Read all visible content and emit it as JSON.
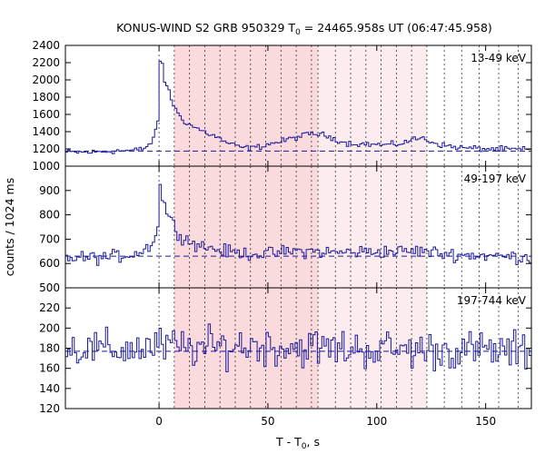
{
  "chart_data": {
    "type": "line",
    "title": {
      "prefix": "KONUS-WIND S2 GRB 950329 T",
      "sub": "0",
      "suffix": " = 24465.958s UT (06:47:45.958)"
    },
    "xlabel": {
      "prefix": "T - T",
      "sub": "0",
      "suffix": ", s"
    },
    "ylabel": "counts / 1024 ms",
    "xlim": [
      -43,
      171
    ],
    "x_ticks": [
      0,
      50,
      100,
      150
    ],
    "shaded_regions": [
      {
        "from": 7,
        "to": 73,
        "color": "#fadadd"
      },
      {
        "from": 73,
        "to": 123,
        "color": "#fcecee"
      }
    ],
    "vertical_lines": [
      0,
      7,
      14,
      21,
      28,
      35,
      42,
      49,
      56,
      63,
      70,
      73,
      81,
      88,
      95,
      102,
      109,
      116,
      123,
      131,
      139,
      147,
      156,
      165
    ],
    "panels": [
      {
        "label": "13-49 keV",
        "ylim": [
          1000,
          2400
        ],
        "y_ticks": [
          1000,
          1200,
          1400,
          1600,
          1800,
          2000,
          2200,
          2400
        ],
        "background": 1175,
        "anchors": [
          [
            -43,
            1160
          ],
          [
            -30,
            1162
          ],
          [
            -20,
            1178
          ],
          [
            -12,
            1180
          ],
          [
            -7,
            1210
          ],
          [
            -3,
            1300
          ],
          [
            -1,
            1550
          ],
          [
            0,
            2200
          ],
          [
            1,
            2180
          ],
          [
            2,
            1980
          ],
          [
            4,
            1900
          ],
          [
            6,
            1700
          ],
          [
            8,
            1620
          ],
          [
            12,
            1500
          ],
          [
            16,
            1450
          ],
          [
            20,
            1400
          ],
          [
            25,
            1350
          ],
          [
            30,
            1280
          ],
          [
            35,
            1230
          ],
          [
            40,
            1210
          ],
          [
            45,
            1220
          ],
          [
            50,
            1260
          ],
          [
            55,
            1280
          ],
          [
            60,
            1320
          ],
          [
            65,
            1350
          ],
          [
            70,
            1380
          ],
          [
            75,
            1360
          ],
          [
            80,
            1320
          ],
          [
            85,
            1270
          ],
          [
            90,
            1260
          ],
          [
            95,
            1255
          ],
          [
            100,
            1250
          ],
          [
            105,
            1245
          ],
          [
            110,
            1260
          ],
          [
            115,
            1300
          ],
          [
            120,
            1330
          ],
          [
            125,
            1280
          ],
          [
            130,
            1240
          ],
          [
            135,
            1225
          ],
          [
            140,
            1210
          ],
          [
            150,
            1200
          ],
          [
            160,
            1195
          ],
          [
            171,
            1190
          ]
        ],
        "noise": 28
      },
      {
        "label": "49-197 keV",
        "ylim": [
          500,
          1000
        ],
        "y_ticks": [
          500,
          600,
          700,
          800,
          900
        ],
        "background": 630,
        "anchors": [
          [
            -43,
            622
          ],
          [
            -25,
            625
          ],
          [
            -15,
            635
          ],
          [
            -8,
            650
          ],
          [
            -4,
            680
          ],
          [
            -1,
            750
          ],
          [
            0,
            920
          ],
          [
            1,
            870
          ],
          [
            2,
            840
          ],
          [
            4,
            800
          ],
          [
            6,
            760
          ],
          [
            8,
            730
          ],
          [
            12,
            700
          ],
          [
            16,
            680
          ],
          [
            20,
            670
          ],
          [
            25,
            660
          ],
          [
            30,
            650
          ],
          [
            40,
            640
          ],
          [
            50,
            640
          ],
          [
            60,
            650
          ],
          [
            70,
            650
          ],
          [
            80,
            645
          ],
          [
            90,
            648
          ],
          [
            100,
            650
          ],
          [
            110,
            650
          ],
          [
            120,
            652
          ],
          [
            130,
            640
          ],
          [
            140,
            635
          ],
          [
            150,
            632
          ],
          [
            160,
            628
          ],
          [
            171,
            625
          ]
        ],
        "noise": 22
      },
      {
        "label": "197-744 keV",
        "ylim": [
          120,
          240
        ],
        "y_ticks": [
          120,
          140,
          160,
          180,
          200,
          220
        ],
        "background": 177,
        "anchors": [
          [
            -43,
            180
          ],
          [
            -20,
            178
          ],
          [
            0,
            182
          ],
          [
            20,
            180
          ],
          [
            40,
            183
          ],
          [
            60,
            181
          ],
          [
            80,
            180
          ],
          [
            100,
            179
          ],
          [
            120,
            178
          ],
          [
            140,
            178
          ],
          [
            160,
            177
          ],
          [
            171,
            177
          ]
        ],
        "noise": 16
      }
    ]
  }
}
